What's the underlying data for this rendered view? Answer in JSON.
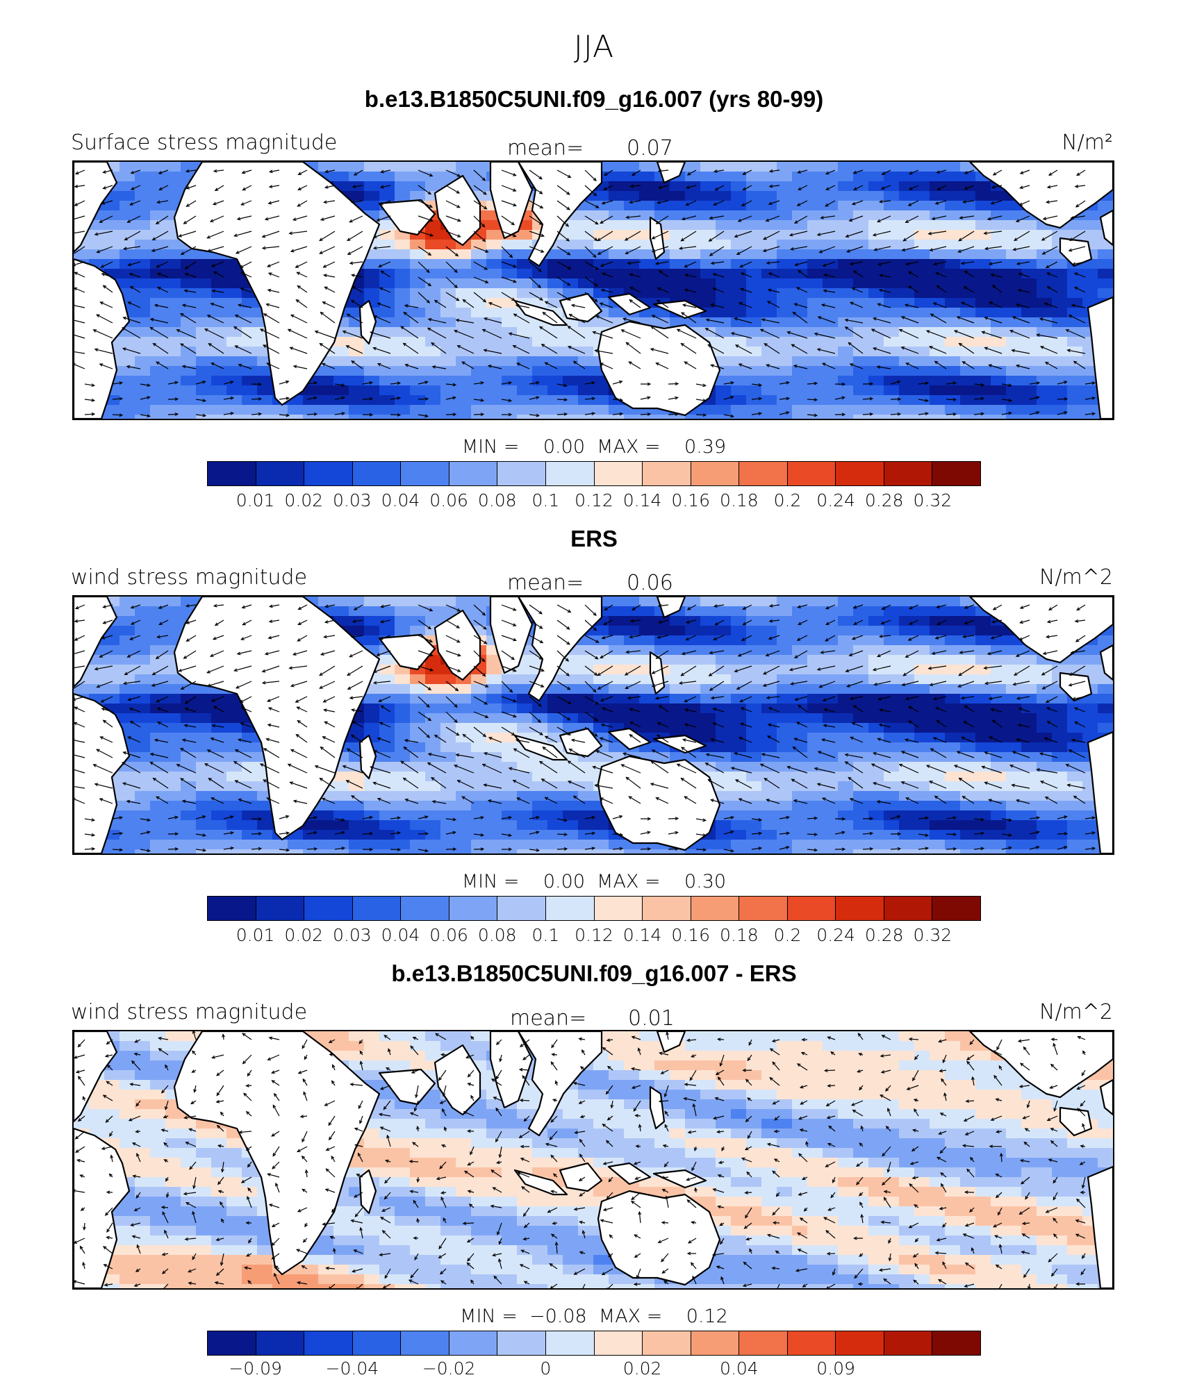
{
  "main_title": "JJA",
  "colors": [
    "#08178a",
    "#0a2bb0",
    "#1446d8",
    "#2a62e6",
    "#4e82f0",
    "#7ea5f5",
    "#aec6f7",
    "#d6e6fa",
    "#fde3d2",
    "#fbc3a6",
    "#f79d76",
    "#f2724a",
    "#ea4a25",
    "#d52c0e",
    "#b01805",
    "#7e0903"
  ],
  "land_color": "#ffffff",
  "panels": [
    {
      "title": "b.e13.B1850C5UNI.f09_g16.007 (yrs 80-99)",
      "left_label": "Surface stress magnitude",
      "mean_label": "mean=",
      "mean_value": "0.07",
      "units": "N/m²",
      "stats": "MIN =    0.00  MAX =    0.39",
      "colorbar_ticks": [
        "0.01",
        "0.02",
        "0.03",
        "0.04",
        "0.06",
        "0.08",
        "0.1",
        "0.12",
        "0.14",
        "0.16",
        "0.18",
        "0.2",
        "0.24",
        "0.28",
        "0.32"
      ],
      "field": "model"
    },
    {
      "title": "ERS",
      "left_label": "wind stress magnitude",
      "mean_label": "mean=",
      "mean_value": "0.06",
      "units": "N/m^2",
      "stats": "MIN =    0.00  MAX =    0.30",
      "colorbar_ticks": [
        "0.01",
        "0.02",
        "0.03",
        "0.04",
        "0.06",
        "0.08",
        "0.1",
        "0.12",
        "0.14",
        "0.16",
        "0.18",
        "0.2",
        "0.24",
        "0.28",
        "0.32"
      ],
      "field": "obs"
    },
    {
      "title": "b.e13.B1850C5UNI.f09_g16.007 - ERS",
      "left_label": "wind stress magnitude",
      "mean_label": "mean=",
      "mean_value": "0.01",
      "units": "N/m^2",
      "stats": "MIN =  −0.08  MAX =    0.12",
      "colorbar_ticks": [
        "−0.09",
        "−0.04",
        "−0.02",
        "0",
        "0.02",
        "0.04",
        "0.09"
      ],
      "field": "diff"
    }
  ]
}
